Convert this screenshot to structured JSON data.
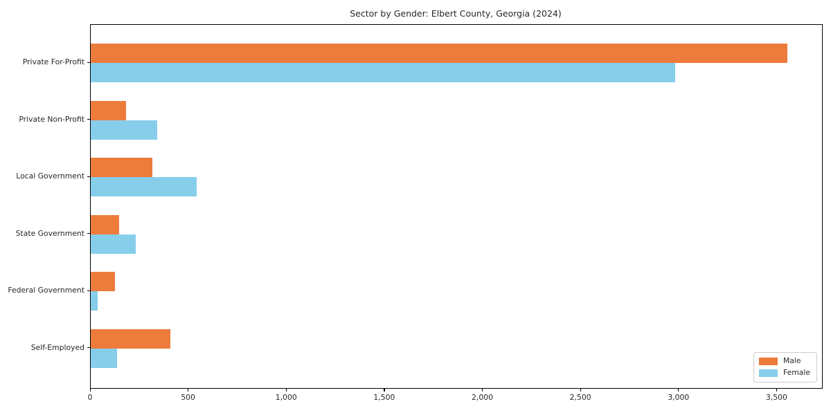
{
  "chart_data": {
    "type": "bar",
    "orientation": "horizontal",
    "title": "Sector by Gender: Elbert County, Georgia (2024)",
    "categories": [
      "Private For-Profit",
      "Private Non-Profit",
      "Local Government",
      "State Government",
      "Federal Government",
      "Self-Employed"
    ],
    "series": [
      {
        "name": "Male",
        "color": "#ec7b3c",
        "values": [
          3550,
          180,
          315,
          145,
          125,
          405
        ]
      },
      {
        "name": "Female",
        "color": "#87ceeb",
        "values": [
          2980,
          340,
          540,
          230,
          35,
          135
        ]
      }
    ],
    "xlabel": "",
    "ylabel": "",
    "xlim": [
      0,
      3728
    ],
    "xticks": [
      0,
      500,
      1000,
      1500,
      2000,
      2500,
      3000,
      3500
    ],
    "xtick_labels": [
      "0",
      "500",
      "1,000",
      "1,500",
      "2,000",
      "2,500",
      "3,000",
      "3,500"
    ],
    "grid": false,
    "legend": {
      "position": "lower right",
      "entries": [
        {
          "label": "Male",
          "color": "#ec7b3c"
        },
        {
          "label": "Female",
          "color": "#87ceeb"
        }
      ]
    }
  }
}
